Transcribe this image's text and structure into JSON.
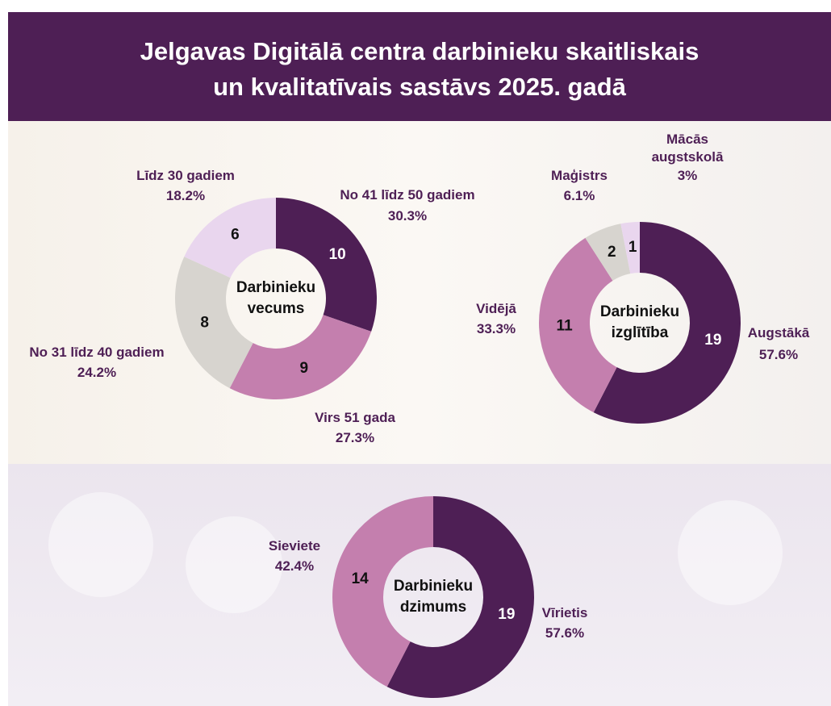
{
  "header": {
    "title_lines": [
      "Jelgavas Digitālā centra darbinieku skaitliskais",
      "un kvalitatīvais sastāvs 2025. gadā"
    ]
  },
  "chart_data": [
    {
      "type": "pie",
      "donut": true,
      "center_label": [
        "Darbinieku",
        "vecums"
      ],
      "categories": [
        "No 41 līdz 50 gadiem",
        "Virs 51 gada",
        "No 31 līdz 40 gadiem",
        "Līdz 30 gadiem"
      ],
      "values": [
        10,
        9,
        8,
        6
      ],
      "percent_labels": [
        "30.3%",
        "27.3%",
        "24.2%",
        "18.2%"
      ],
      "colors": [
        "#4e1f55",
        "#c47fae",
        "#d7d4cf",
        "#e9d6ee"
      ]
    },
    {
      "type": "pie",
      "donut": true,
      "center_label": [
        "Darbinieku",
        "izglītība"
      ],
      "categories": [
        "Augstākā",
        "Vidējā",
        "Maģistrs",
        "Mācās augstskolā"
      ],
      "values": [
        19,
        11,
        2,
        1
      ],
      "percent_labels": [
        "57.6%",
        "33.3%",
        "6.1%",
        "3%"
      ],
      "colors": [
        "#4e1f55",
        "#c47fae",
        "#d7d4cf",
        "#e9d6ee"
      ]
    },
    {
      "type": "pie",
      "donut": true,
      "center_label": [
        "Darbinieku",
        "dzimums"
      ],
      "categories": [
        "Vīrietis",
        "Sieviete"
      ],
      "values": [
        19,
        14
      ],
      "percent_labels": [
        "57.6%",
        "42.4%"
      ],
      "colors": [
        "#4e1f55",
        "#c47fae"
      ]
    }
  ]
}
